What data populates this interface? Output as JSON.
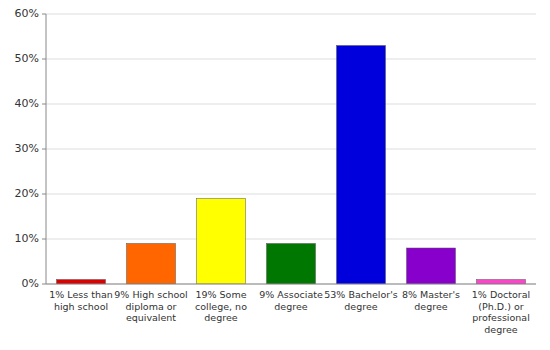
{
  "chart_data": {
    "type": "bar",
    "categories": [
      "1% Less than\nhigh school",
      "9% High school\ndiploma or\nequivalent",
      "19% Some\ncollege, no\ndegree",
      "9% Associate\ndegree",
      "53% Bachelor's\ndegree",
      "8% Master's\ndegree",
      "1% Doctoral\n(Ph.D.) or\nprofessional\ndegree"
    ],
    "values": [
      1,
      9,
      19,
      9,
      53,
      8,
      1
    ],
    "colors": [
      "#dd0000",
      "#ff6600",
      "#ffff00",
      "#007700",
      "#0000dd",
      "#8800cc",
      "#ff44cc"
    ],
    "ylim": [
      0,
      60
    ],
    "yticks": [
      {
        "value": 0,
        "label": "0%"
      },
      {
        "value": 10,
        "label": "10%"
      },
      {
        "value": 20,
        "label": "20%"
      },
      {
        "value": 30,
        "label": "30%"
      },
      {
        "value": 40,
        "label": "40%"
      },
      {
        "value": 50,
        "label": "50%"
      },
      {
        "value": 60,
        "label": "60%"
      }
    ],
    "grid": true
  }
}
